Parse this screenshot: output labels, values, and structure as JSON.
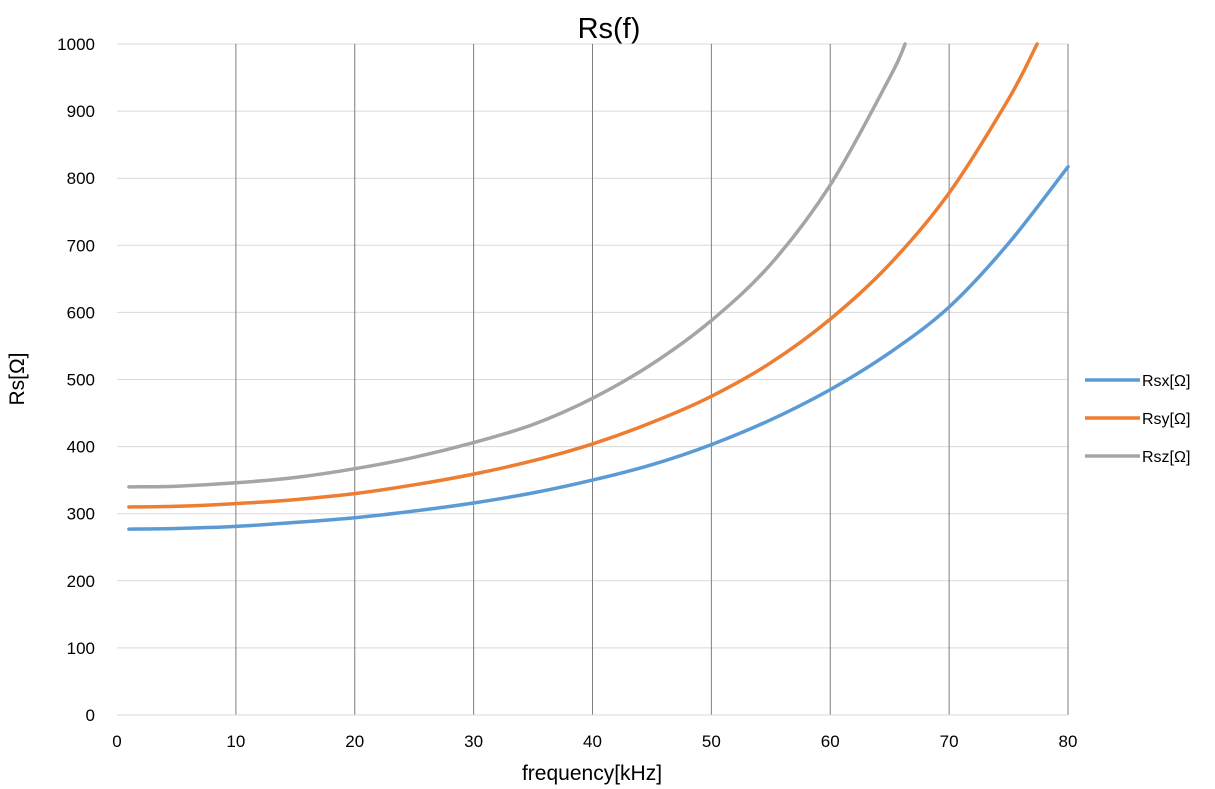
{
  "chart_data": {
    "type": "line",
    "title": "Rs(f)",
    "xlabel": "frequency[kHz]",
    "ylabel": "Rs[Ω]",
    "xlim": [
      0,
      80
    ],
    "ylim": [
      0,
      1000
    ],
    "xticks": [
      0,
      10,
      20,
      30,
      40,
      50,
      60,
      70,
      80
    ],
    "yticks": [
      0,
      100,
      200,
      300,
      400,
      500,
      600,
      700,
      800,
      900,
      1000
    ],
    "vertical_grid": true,
    "horizontal_grid": true,
    "legend_position": "right",
    "x": [
      1,
      5,
      10,
      15,
      20,
      25,
      30,
      35,
      40,
      45,
      50,
      55,
      60,
      65,
      70,
      75,
      80
    ],
    "series": [
      {
        "name": "Rsx[Ω]",
        "color": "#5b9bd5",
        "values": [
          277,
          278,
          281,
          287,
          294,
          304,
          316,
          331,
          350,
          373,
          403,
          440,
          485,
          540,
          608,
          703,
          817
        ]
      },
      {
        "name": "Rsy[Ω]",
        "color": "#ed7d31",
        "values": [
          310,
          311,
          315,
          321,
          330,
          343,
          359,
          379,
          404,
          436,
          475,
          525,
          590,
          672,
          778,
          918,
          null
        ]
      },
      {
        "name": "Rsz[Ω]",
        "color": "#a5a5a5",
        "values": [
          340,
          341,
          346,
          354,
          367,
          384,
          406,
          433,
          472,
          523,
          588,
          672,
          790,
          950,
          null,
          null,
          null
        ]
      }
    ],
    "overflow_x": {
      "Rsy[Ω]": 77.4,
      "Rsz[Ω]": 66.3
    }
  }
}
